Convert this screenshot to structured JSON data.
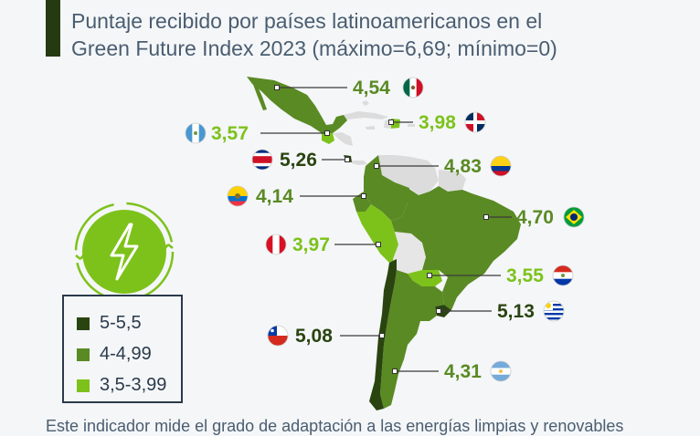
{
  "title": {
    "line1": "Puntaje recibido por países latinoamericanos en el",
    "line2": "Green Future Index 2023 (máximo=6,69; mínimo=0)"
  },
  "colors": {
    "dark": "#2a4410",
    "medium": "#5a8a24",
    "light": "#7dc21b",
    "no_data": "#e6e6e6",
    "title_bar": "#263a12"
  },
  "legend": [
    {
      "label": "5-5,5",
      "color": "#2a4410"
    },
    {
      "label": "4-4,99",
      "color": "#5a8a24"
    },
    {
      "label": "3,5-3,99",
      "color": "#7dc21b"
    }
  ],
  "countries": [
    {
      "country": "México",
      "value": "4,54",
      "category": "medium",
      "flag": "mexico-flag"
    },
    {
      "country": "República Dominicana",
      "value": "3,98",
      "category": "light",
      "flag": "dominican-republic-flag"
    },
    {
      "country": "Guatemala",
      "value": "3,57",
      "category": "light",
      "flag": "guatemala-flag"
    },
    {
      "country": "Costa Rica",
      "value": "5,26",
      "category": "dark",
      "flag": "costa-rica-flag"
    },
    {
      "country": "Colombia",
      "value": "4,83",
      "category": "medium",
      "flag": "colombia-flag"
    },
    {
      "country": "Ecuador",
      "value": "4,14",
      "category": "medium",
      "flag": "ecuador-flag"
    },
    {
      "country": "Brasil",
      "value": "4,70",
      "category": "medium",
      "flag": "brazil-flag"
    },
    {
      "country": "Perú",
      "value": "3,97",
      "category": "light",
      "flag": "peru-flag"
    },
    {
      "country": "Paraguay",
      "value": "3,55",
      "category": "light",
      "flag": "paraguay-flag"
    },
    {
      "country": "Uruguay",
      "value": "5,13",
      "category": "dark",
      "flag": "uruguay-flag"
    },
    {
      "country": "Chile",
      "value": "5,08",
      "category": "dark",
      "flag": "chile-flag"
    },
    {
      "country": "Argentina",
      "value": "4,31",
      "category": "medium",
      "flag": "argentina-flag"
    }
  ],
  "badge_icon": "lightning-bolt-icon",
  "footnote": "Este indicador mide el grado de adaptación a las energías limpias y renovables"
}
